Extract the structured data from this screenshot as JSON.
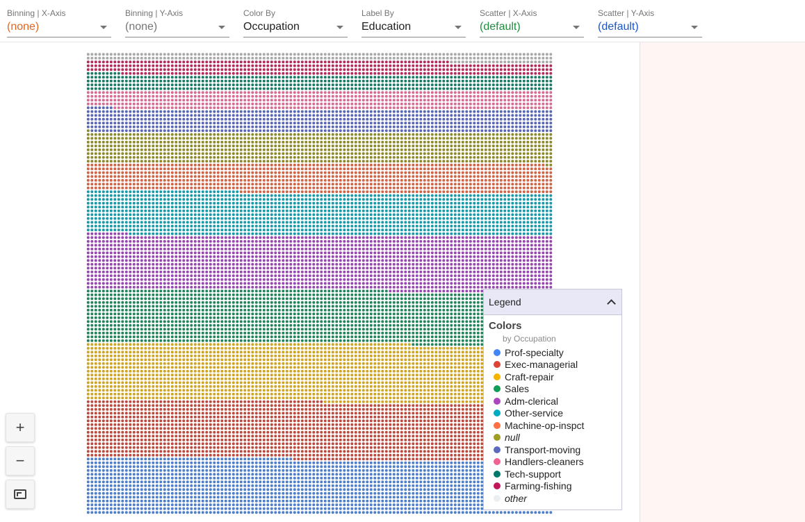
{
  "toolbar": {
    "binning_x": {
      "label": "Binning | X-Axis",
      "value": "(none)",
      "color": "#e0651f"
    },
    "binning_y": {
      "label": "Binning | Y-Axis",
      "value": "(none)",
      "color": "#757575"
    },
    "color_by": {
      "label": "Color By",
      "value": "Occupation",
      "color": "#212121"
    },
    "label_by": {
      "label": "Label By",
      "value": "Education",
      "color": "#212121"
    },
    "scatter_x": {
      "label": "Scatter | X-Axis",
      "value": "(default)",
      "color": "#1e8e3e"
    },
    "scatter_y": {
      "label": "Scatter | Y-Axis",
      "value": "(default)",
      "color": "#1a56c4"
    }
  },
  "controls": {
    "zoom_in": "+",
    "zoom_out": "−"
  },
  "legend": {
    "header": "Legend",
    "title": "Colors",
    "subtitle": "by Occupation",
    "items": [
      {
        "label": "Prof-specialty",
        "color": "#4285f4",
        "italic": false
      },
      {
        "label": "Exec-managerial",
        "color": "#db4437",
        "italic": false
      },
      {
        "label": "Craft-repair",
        "color": "#f4b400",
        "italic": false
      },
      {
        "label": "Sales",
        "color": "#0f9d58",
        "italic": false
      },
      {
        "label": "Adm-clerical",
        "color": "#ab47bc",
        "italic": false
      },
      {
        "label": "Other-service",
        "color": "#00acc1",
        "italic": false
      },
      {
        "label": "Machine-op-inspct",
        "color": "#ff7043",
        "italic": false
      },
      {
        "label": "null",
        "color": "#9e9d24",
        "italic": true
      },
      {
        "label": "Transport-moving",
        "color": "#5c6bc0",
        "italic": false
      },
      {
        "label": "Handlers-cleaners",
        "color": "#f06292",
        "italic": false
      },
      {
        "label": "Tech-support",
        "color": "#00796b",
        "italic": false
      },
      {
        "label": "Farming-fishing",
        "color": "#c2185b",
        "italic": false
      },
      {
        "label": "other",
        "color": "#eceff1",
        "italic": true
      }
    ]
  },
  "visualization": {
    "dot_grid": [
      {
        "category": "Prof-specialty",
        "color": "#4f7fc9",
        "share": 0.117
      },
      {
        "category": "Exec-managerial",
        "color": "#bc4b3f",
        "share": 0.122
      },
      {
        "category": "Craft-repair",
        "color": "#cfa527",
        "share": 0.123
      },
      {
        "category": "Sales",
        "color": "#23845c",
        "share": 0.113
      },
      {
        "category": "Adm-clerical",
        "color": "#9748ae",
        "share": 0.117
      },
      {
        "category": "Other-service",
        "color": "#1a9aa8",
        "share": 0.091
      },
      {
        "category": "Machine-op-inspct",
        "color": "#cf6447",
        "share": 0.062
      },
      {
        "category": "null",
        "color": "#8d8a2c",
        "share": 0.065
      },
      {
        "category": "Transport-moving",
        "color": "#5a67b4",
        "share": 0.049
      },
      {
        "category": "Handlers-cleaners",
        "color": "#d66b93",
        "share": 0.04
      },
      {
        "category": "Tech-support",
        "color": "#1b7a66",
        "share": 0.033
      },
      {
        "category": "Farming-fishing",
        "color": "#b32b5b",
        "share": 0.03
      },
      {
        "category": "other",
        "color": "#a9a9a9",
        "share": 0.018
      }
    ]
  }
}
